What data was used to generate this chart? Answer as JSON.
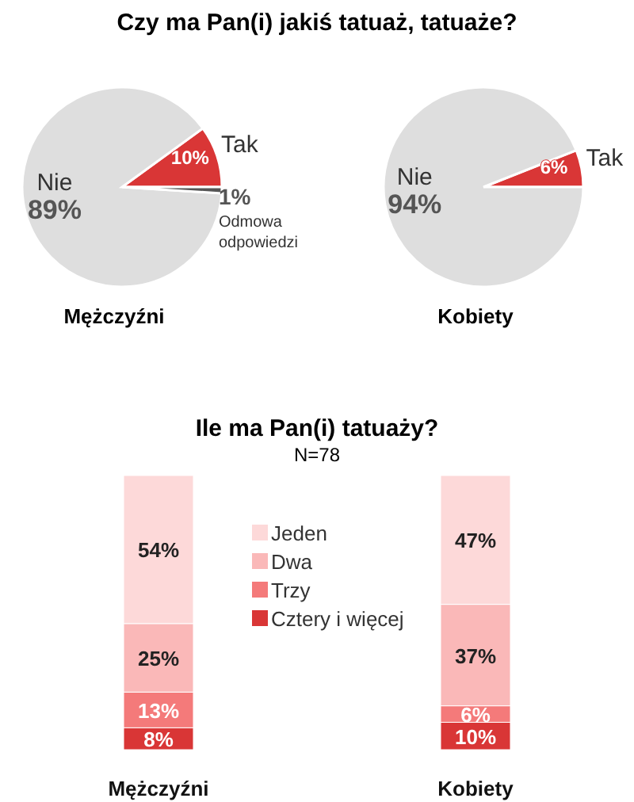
{
  "chart_data": [
    {
      "type": "pie",
      "title": "Czy ma Pan(i) jakiś tatuaż, tatuaże?",
      "xlabel": "Mężczyźni",
      "categories": [
        "Tak",
        "Nie",
        "Odmowa odpowiedzi"
      ],
      "values": [
        10,
        89,
        1
      ],
      "colors": [
        "#d93636",
        "#dedede",
        "#555555"
      ],
      "value_labels": [
        "10%",
        "89%",
        "1%"
      ]
    },
    {
      "type": "pie",
      "xlabel": "Kobiety",
      "categories": [
        "Tak",
        "Nie"
      ],
      "values": [
        6,
        94
      ],
      "colors": [
        "#d93636",
        "#dedede"
      ],
      "value_labels": [
        "6%",
        "94%"
      ]
    },
    {
      "type": "bar",
      "stacked": true,
      "title": "Ile ma Pan(i) tatuaży?",
      "subtitle": "N=78",
      "categories": [
        "Mężczyźni",
        "Kobiety"
      ],
      "legend": "center",
      "series": [
        {
          "name": "Cztery i więcej",
          "color": "#d93636",
          "values": [
            8,
            10
          ],
          "value_labels": [
            "8%",
            "10%"
          ]
        },
        {
          "name": "Trzy",
          "color": "#f47a7a",
          "values": [
            13,
            6
          ],
          "value_labels": [
            "13%",
            "6%"
          ]
        },
        {
          "name": "Dwa",
          "color": "#fab8b8",
          "values": [
            25,
            37
          ],
          "value_labels": [
            "25%",
            "37%"
          ]
        },
        {
          "name": "Jeden",
          "color": "#fdd9d9",
          "values": [
            54,
            47
          ],
          "value_labels": [
            "54%",
            "47%"
          ]
        }
      ]
    }
  ]
}
